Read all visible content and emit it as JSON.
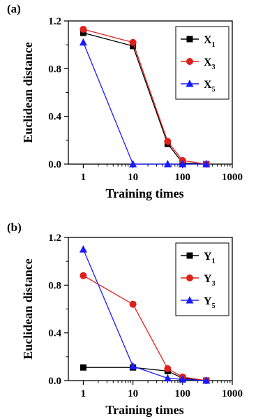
{
  "chart_data": [
    {
      "type": "line",
      "panel_label": "(a)",
      "xlabel": "Training times",
      "ylabel": "Euclidean distance",
      "x_scale": "log",
      "xlim": [
        0.5,
        1000
      ],
      "ylim": [
        0,
        1.2
      ],
      "x_ticks": [
        "1",
        "10",
        "100",
        "1000"
      ],
      "y_ticks": [
        "0.0",
        "0.4",
        "0.8",
        "1.2"
      ],
      "legend_position": "top-right",
      "x": [
        1,
        10,
        50,
        100,
        300
      ],
      "series": [
        {
          "name": "X1",
          "legend_main": "X",
          "legend_sub": "1",
          "color": "#000000",
          "marker": "square",
          "values": [
            1.1,
            0.99,
            0.17,
            0.01,
            0.0
          ]
        },
        {
          "name": "X3",
          "legend_main": "X",
          "legend_sub": "3",
          "color": "#e0201b",
          "marker": "circle",
          "values": [
            1.13,
            1.02,
            0.19,
            0.03,
            0.0
          ]
        },
        {
          "name": "X5",
          "legend_main": "X",
          "legend_sub": "5",
          "color": "#1a1aff",
          "marker": "triangle",
          "values": [
            1.02,
            0.0,
            0.0,
            0.0,
            0.0
          ]
        }
      ]
    },
    {
      "type": "line",
      "panel_label": "(b)",
      "xlabel": "Training times",
      "ylabel": "Euclidean distance",
      "x_scale": "log",
      "xlim": [
        0.5,
        1000
      ],
      "ylim": [
        0,
        1.2
      ],
      "x_ticks": [
        "1",
        "10",
        "100",
        "1000"
      ],
      "y_ticks": [
        "0.0",
        "0.4",
        "0.8",
        "1.2"
      ],
      "legend_position": "top-right",
      "x": [
        1,
        10,
        50,
        100,
        300
      ],
      "series": [
        {
          "name": "Y1",
          "legend_main": "Y",
          "legend_sub": "1",
          "color": "#000000",
          "marker": "square",
          "values": [
            0.11,
            0.11,
            0.08,
            0.02,
            0.0
          ]
        },
        {
          "name": "Y3",
          "legend_main": "Y",
          "legend_sub": "3",
          "color": "#e0201b",
          "marker": "circle",
          "values": [
            0.88,
            0.64,
            0.1,
            0.03,
            0.0
          ]
        },
        {
          "name": "Y5",
          "legend_main": "Y",
          "legend_sub": "5",
          "color": "#1a1aff",
          "marker": "triangle",
          "values": [
            1.1,
            0.12,
            0.02,
            0.01,
            0.0
          ]
        }
      ]
    }
  ]
}
